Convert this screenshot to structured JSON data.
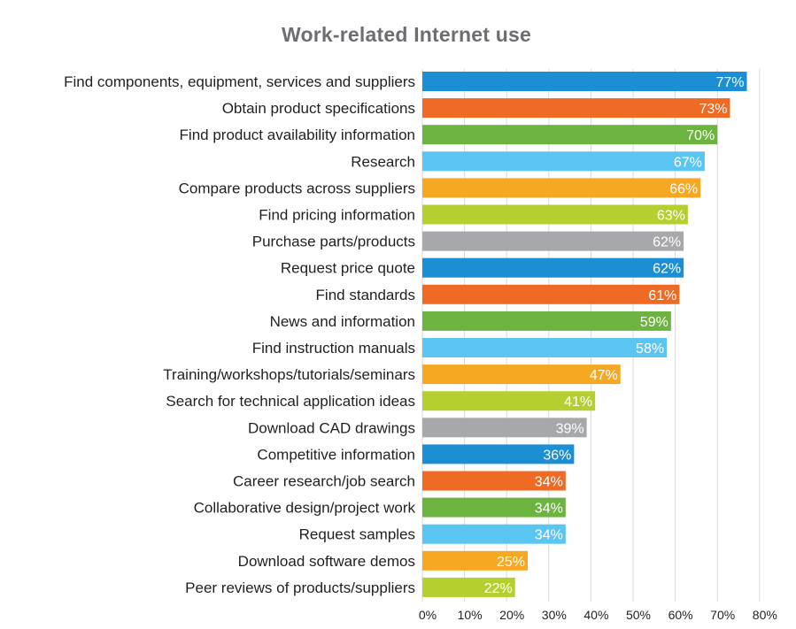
{
  "chart_data": {
    "type": "bar",
    "orientation": "horizontal",
    "title": "Work-related Internet use",
    "categories": [
      "Find components, equipment, services and suppliers",
      "Obtain product specifications",
      "Find product availability information",
      "Research",
      "Compare products across suppliers",
      "Find pricing information",
      "Purchase parts/products",
      "Request price quote",
      "Find standards",
      "News and information",
      "Find instruction manuals",
      "Training/workshops/tutorials/seminars",
      "Search for technical application ideas",
      "Download CAD drawings",
      "Competitive information",
      "Career research/job search",
      "Collaborative design/project work",
      "Request samples",
      "Download software demos",
      "Peer reviews of products/suppliers"
    ],
    "values": [
      77,
      73,
      70,
      67,
      66,
      63,
      62,
      62,
      61,
      59,
      58,
      47,
      41,
      39,
      36,
      34,
      34,
      34,
      25,
      22
    ],
    "value_labels": [
      "77%",
      "73%",
      "70%",
      "67%",
      "66%",
      "63%",
      "62%",
      "62%",
      "61%",
      "59%",
      "58%",
      "47%",
      "41%",
      "39%",
      "36%",
      "34%",
      "34%",
      "34%",
      "25%",
      "22%"
    ],
    "bar_colors": [
      "#1b8ed4",
      "#ef6b25",
      "#6cb33f",
      "#5bc5f2",
      "#f7a823",
      "#b4cf2f",
      "#a6a8ab",
      "#1b8ed4",
      "#ef6b25",
      "#6cb33f",
      "#5bc5f2",
      "#f7a823",
      "#b4cf2f",
      "#a6a8ab",
      "#1b8ed4",
      "#ef6b25",
      "#6cb33f",
      "#5bc5f2",
      "#f7a823",
      "#b4cf2f"
    ],
    "xlim": [
      0,
      80
    ],
    "xticks": [
      0,
      10,
      20,
      30,
      40,
      50,
      60,
      70,
      80
    ],
    "xtick_labels": [
      "0%",
      "10%",
      "20%",
      "30%",
      "40%",
      "50%",
      "60%",
      "70%",
      "80%"
    ],
    "grid": true,
    "legend": "none"
  }
}
